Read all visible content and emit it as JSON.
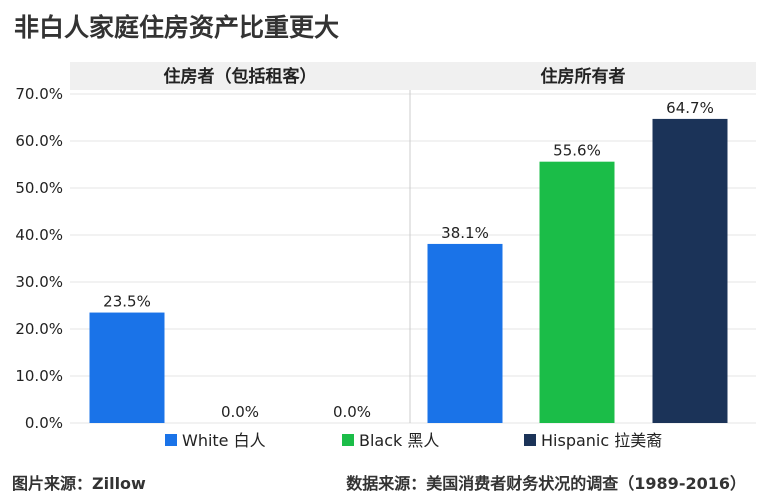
{
  "title": "非白人家庭住房资产比重更大",
  "source_image": "图片来源：Zillow",
  "source_data": "数据来源：美国消费者财务状况的调查（1989-2016）",
  "chart_data": {
    "type": "bar",
    "panels": [
      "住房者（包括租客）",
      "住房所有者"
    ],
    "series": [
      {
        "name": "White 白人",
        "color": "#1a73e8",
        "values": [
          23.5,
          38.1
        ]
      },
      {
        "name": "Black 黑人",
        "color": "#1bbd48",
        "values": [
          0.0,
          55.6
        ]
      },
      {
        "name": "Hispanic 拉美裔",
        "color": "#1b3358",
        "values": [
          0.0,
          64.7
        ]
      }
    ],
    "value_labels": [
      [
        "23.5%",
        "38.1%"
      ],
      [
        "0.0%",
        "55.6%"
      ],
      [
        "0.0%",
        "64.7%"
      ]
    ],
    "yticks": [
      0,
      10,
      20,
      30,
      40,
      50,
      60,
      70
    ],
    "ytick_labels": [
      "0.0%",
      "10.0%",
      "20.0%",
      "30.0%",
      "40.0%",
      "50.0%",
      "60.0%",
      "70.0%"
    ],
    "ylim": [
      0,
      70
    ],
    "grid": true,
    "legend": "bottom"
  }
}
